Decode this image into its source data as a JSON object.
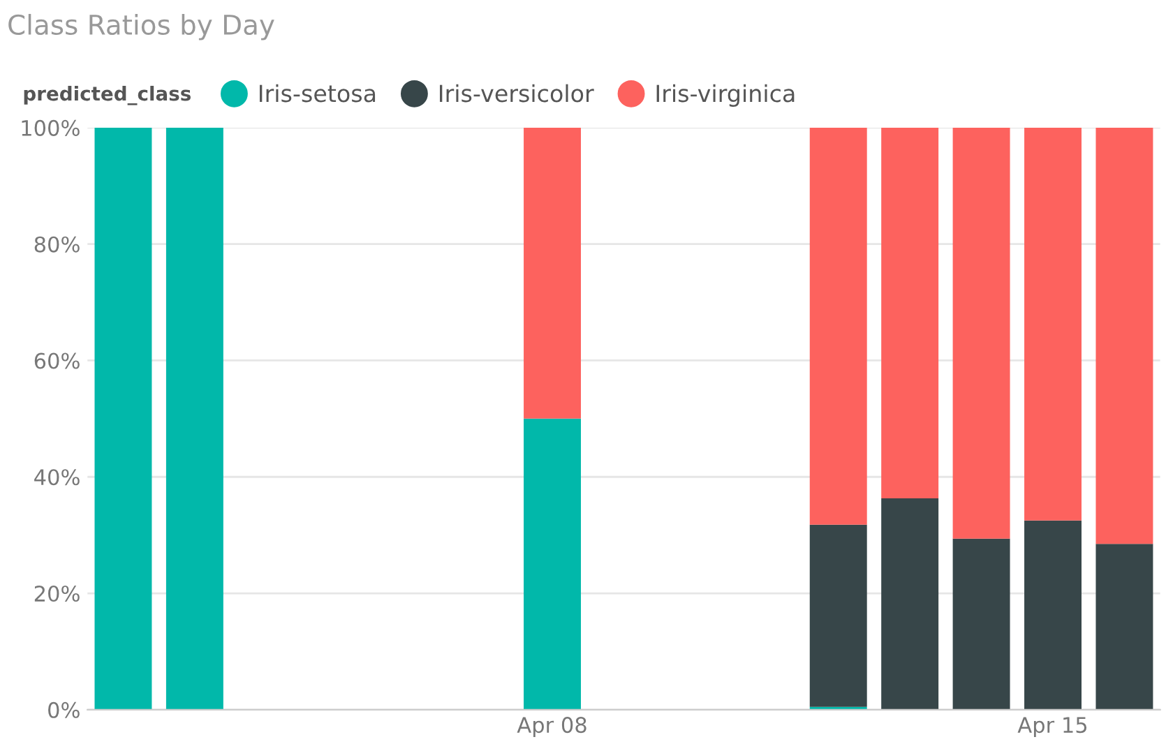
{
  "chart_data": {
    "type": "bar",
    "title": "Class Ratios by Day",
    "stacked": true,
    "legend": "top left",
    "legend_title": "predicted_class",
    "grid": "y",
    "categories": [
      null,
      null,
      null,
      null,
      null,
      null,
      "Apr 08",
      null,
      null,
      null,
      null,
      null,
      null,
      "Apr 15",
      null
    ],
    "series": [
      {
        "name": "Iris-setosa",
        "color": "#01b8aa",
        "values": [
          100,
          100,
          null,
          null,
          null,
          null,
          50,
          null,
          null,
          null,
          0.5,
          null,
          null,
          null,
          null
        ]
      },
      {
        "name": "Iris-versicolor",
        "color": "#374649",
        "values": [
          null,
          null,
          null,
          null,
          null,
          null,
          null,
          null,
          null,
          null,
          31.3,
          36.3,
          29.4,
          32.5,
          28.5
        ]
      },
      {
        "name": "Iris-virginica",
        "color": "#fd625e",
        "values": [
          null,
          null,
          null,
          null,
          null,
          null,
          50,
          null,
          null,
          null,
          68.2,
          63.7,
          70.6,
          67.5,
          71.5
        ]
      }
    ],
    "ylim": [
      0,
      100
    ],
    "yticks": [
      {
        "value": 0,
        "label": "0%"
      },
      {
        "value": 20,
        "label": "20%"
      },
      {
        "value": 40,
        "label": "40%"
      },
      {
        "value": 60,
        "label": "60%"
      },
      {
        "value": 80,
        "label": "80%"
      },
      {
        "value": 100,
        "label": "100%"
      }
    ]
  }
}
